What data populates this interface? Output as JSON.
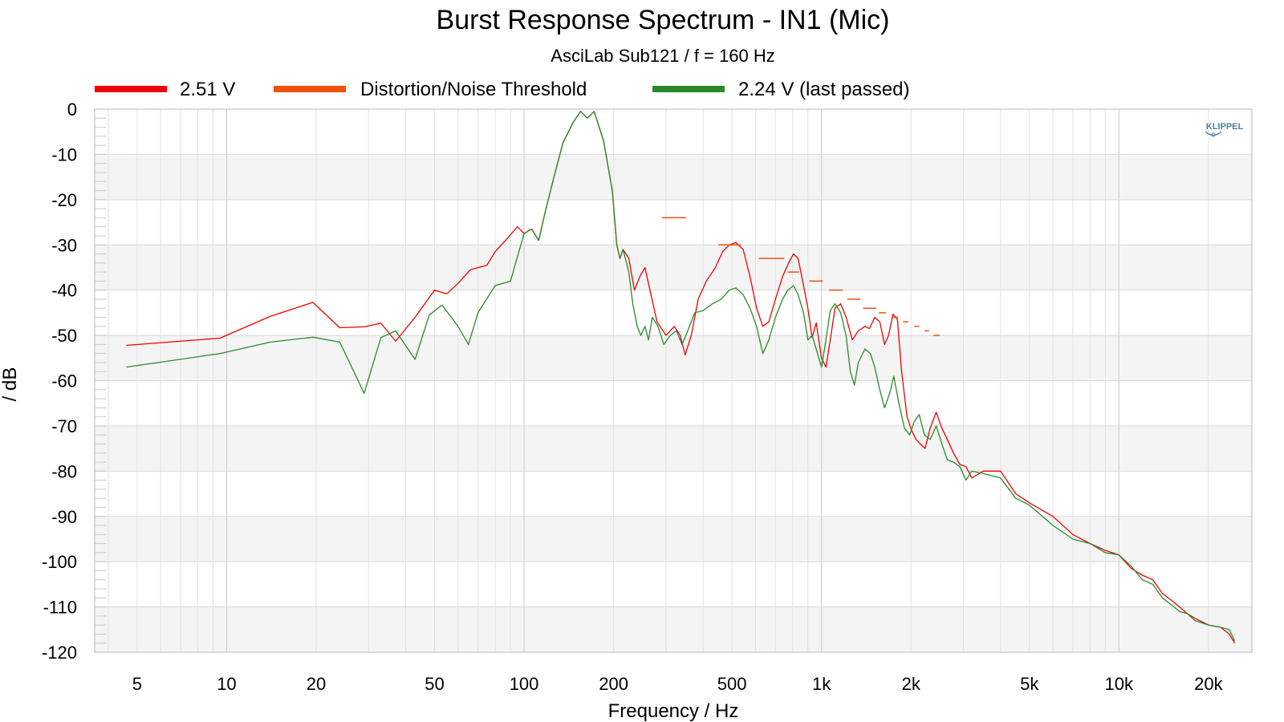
{
  "chart_data": {
    "type": "line",
    "title": "Burst Response Spectrum - IN1 (Mic)",
    "subtitle": "AsciLab Sub121 / f = 160 Hz",
    "xlabel": "Frequency / Hz",
    "ylabel": "/ dB",
    "xscale": "log",
    "xlim": [
      3.6,
      28000
    ],
    "ylim": [
      -120,
      0
    ],
    "grid": true,
    "legend_position": "top",
    "x_ticks": [
      {
        "value": 5,
        "label": "5"
      },
      {
        "value": 10,
        "label": "10"
      },
      {
        "value": 20,
        "label": "20"
      },
      {
        "value": 50,
        "label": "50"
      },
      {
        "value": 100,
        "label": "100"
      },
      {
        "value": 200,
        "label": "200"
      },
      {
        "value": 500,
        "label": "500"
      },
      {
        "value": 1000,
        "label": "1k"
      },
      {
        "value": 2000,
        "label": "2k"
      },
      {
        "value": 5000,
        "label": "5k"
      },
      {
        "value": 10000,
        "label": "10k"
      },
      {
        "value": 20000,
        "label": "20k"
      }
    ],
    "y_ticks": [
      0,
      -10,
      -20,
      -30,
      -40,
      -50,
      -60,
      -70,
      -80,
      -90,
      -100,
      -110,
      -120
    ],
    "series": [
      {
        "name": "2.51 V",
        "color": "#ee0000",
        "style": "line",
        "points": [
          [
            4.6,
            -52.2
          ],
          [
            9.5,
            -50.6
          ],
          [
            14,
            -45.8
          ],
          [
            19.5,
            -42.7
          ],
          [
            24,
            -48.3
          ],
          [
            29,
            -48.1
          ],
          [
            33,
            -47.3
          ],
          [
            37,
            -51.3
          ],
          [
            43,
            -46
          ],
          [
            50,
            -40
          ],
          [
            55,
            -40.8
          ],
          [
            60,
            -38.5
          ],
          [
            66,
            -35.5
          ],
          [
            75,
            -34.5
          ],
          [
            80,
            -31.5
          ],
          [
            88,
            -28.5
          ],
          [
            95,
            -26
          ],
          [
            100,
            -27.5
          ],
          [
            106,
            -26.5
          ],
          [
            112,
            -29
          ],
          [
            118,
            -22.5
          ],
          [
            126,
            -15
          ],
          [
            135,
            -7.5
          ],
          [
            146,
            -3
          ],
          [
            155,
            -0.5
          ],
          [
            163,
            -2
          ],
          [
            172,
            -0.5
          ],
          [
            185,
            -7
          ],
          [
            198,
            -18
          ],
          [
            205,
            -30
          ],
          [
            210,
            -33
          ],
          [
            215,
            -31
          ],
          [
            225,
            -33
          ],
          [
            235,
            -40
          ],
          [
            245,
            -37
          ],
          [
            255,
            -35
          ],
          [
            265,
            -40
          ],
          [
            280,
            -47
          ],
          [
            300,
            -50
          ],
          [
            320,
            -48
          ],
          [
            335,
            -50
          ],
          [
            348,
            -54.3
          ],
          [
            365,
            -50
          ],
          [
            385,
            -42
          ],
          [
            410,
            -38
          ],
          [
            440,
            -35
          ],
          [
            465,
            -31.5
          ],
          [
            490,
            -30
          ],
          [
            515,
            -29.5
          ],
          [
            545,
            -31
          ],
          [
            575,
            -37
          ],
          [
            605,
            -44
          ],
          [
            635,
            -48
          ],
          [
            665,
            -47
          ],
          [
            700,
            -42
          ],
          [
            740,
            -37
          ],
          [
            775,
            -34
          ],
          [
            805,
            -32
          ],
          [
            835,
            -33
          ],
          [
            870,
            -39
          ],
          [
            900,
            -44
          ],
          [
            930,
            -50.5
          ],
          [
            960,
            -47.2
          ],
          [
            1000,
            -55
          ],
          [
            1035,
            -57
          ],
          [
            1070,
            -51
          ],
          [
            1110,
            -44
          ],
          [
            1160,
            -43
          ],
          [
            1210,
            -46
          ],
          [
            1270,
            -51
          ],
          [
            1330,
            -49
          ],
          [
            1400,
            -48
          ],
          [
            1450,
            -48.5
          ],
          [
            1510,
            -46
          ],
          [
            1570,
            -47
          ],
          [
            1630,
            -52
          ],
          [
            1680,
            -50
          ],
          [
            1740,
            -45.3
          ],
          [
            1800,
            -46.5
          ],
          [
            1860,
            -58
          ],
          [
            1940,
            -68
          ],
          [
            2010,
            -71
          ],
          [
            2080,
            -73
          ],
          [
            2150,
            -74
          ],
          [
            2230,
            -75
          ],
          [
            2320,
            -70.5
          ],
          [
            2430,
            -67
          ],
          [
            2540,
            -70.5
          ],
          [
            2650,
            -73
          ],
          [
            2780,
            -76
          ],
          [
            2920,
            -78.5
          ],
          [
            3060,
            -79
          ],
          [
            3200,
            -81.5
          ],
          [
            3500,
            -80
          ],
          [
            4000,
            -80
          ],
          [
            4500,
            -85
          ],
          [
            5000,
            -87
          ],
          [
            6000,
            -90
          ],
          [
            7000,
            -94
          ],
          [
            8000,
            -96
          ],
          [
            9000,
            -97.5
          ],
          [
            10000,
            -98.5
          ],
          [
            11000,
            -101.5
          ],
          [
            12000,
            -103
          ],
          [
            13000,
            -104
          ],
          [
            14000,
            -107
          ],
          [
            15000,
            -108.5
          ],
          [
            16000,
            -110
          ],
          [
            17000,
            -111.5
          ],
          [
            18000,
            -112.5
          ],
          [
            20000,
            -114
          ],
          [
            22000,
            -114.5
          ],
          [
            23500,
            -116
          ],
          [
            24500,
            -118
          ]
        ]
      },
      {
        "name": "Distortion/Noise Threshold",
        "color": "#f0500a",
        "style": "steps",
        "points": [
          [
            290,
            -24
          ],
          [
            350,
            -24
          ],
          [
            450,
            -30
          ],
          [
            535,
            -30
          ],
          [
            615,
            -33
          ],
          [
            750,
            -33
          ],
          [
            770,
            -36
          ],
          [
            840,
            -36
          ],
          [
            910,
            -38
          ],
          [
            1010,
            -38
          ],
          [
            1060,
            -40
          ],
          [
            1180,
            -40
          ],
          [
            1220,
            -42
          ],
          [
            1350,
            -42
          ],
          [
            1380,
            -44
          ],
          [
            1530,
            -44
          ],
          [
            1560,
            -45
          ],
          [
            1650,
            -45
          ],
          [
            1720,
            -46
          ],
          [
            1810,
            -46
          ],
          [
            1880,
            -47
          ],
          [
            1960,
            -47
          ],
          [
            2050,
            -48
          ],
          [
            2130,
            -48
          ],
          [
            2220,
            -49
          ],
          [
            2300,
            -49
          ],
          [
            2380,
            -50
          ],
          [
            2500,
            -50
          ]
        ]
      },
      {
        "name": "2.24 V (last passed)",
        "color": "#2a8a2a",
        "style": "line",
        "points": [
          [
            4.6,
            -57
          ],
          [
            9.5,
            -54
          ],
          [
            14,
            -51.5
          ],
          [
            19.5,
            -50.4
          ],
          [
            24,
            -51.5
          ],
          [
            29,
            -62.8
          ],
          [
            33,
            -50.5
          ],
          [
            37,
            -49
          ],
          [
            43,
            -55.3
          ],
          [
            48,
            -45.5
          ],
          [
            53,
            -43.3
          ],
          [
            60,
            -48
          ],
          [
            65,
            -52
          ],
          [
            70,
            -45
          ],
          [
            80,
            -39
          ],
          [
            90,
            -38
          ],
          [
            100,
            -27.5
          ],
          [
            106,
            -26.5
          ],
          [
            112,
            -29
          ],
          [
            118,
            -22.5
          ],
          [
            126,
            -15
          ],
          [
            135,
            -7.5
          ],
          [
            146,
            -3
          ],
          [
            155,
            -0.5
          ],
          [
            163,
            -2
          ],
          [
            172,
            -0.5
          ],
          [
            185,
            -7
          ],
          [
            198,
            -18
          ],
          [
            205,
            -30
          ],
          [
            210,
            -33
          ],
          [
            215,
            -31
          ],
          [
            225,
            -36
          ],
          [
            232,
            -43
          ],
          [
            240,
            -48
          ],
          [
            247,
            -50
          ],
          [
            255,
            -48
          ],
          [
            262,
            -51
          ],
          [
            270,
            -46
          ],
          [
            282,
            -48
          ],
          [
            295,
            -52
          ],
          [
            310,
            -50
          ],
          [
            325,
            -49
          ],
          [
            340,
            -52
          ],
          [
            355,
            -49
          ],
          [
            375,
            -45
          ],
          [
            400,
            -44.5
          ],
          [
            430,
            -43
          ],
          [
            460,
            -42
          ],
          [
            490,
            -40
          ],
          [
            515,
            -39.5
          ],
          [
            545,
            -41
          ],
          [
            575,
            -44
          ],
          [
            605,
            -48
          ],
          [
            635,
            -54
          ],
          [
            665,
            -51
          ],
          [
            700,
            -46
          ],
          [
            740,
            -42
          ],
          [
            770,
            -40
          ],
          [
            805,
            -39
          ],
          [
            835,
            -41
          ],
          [
            870,
            -45
          ],
          [
            900,
            -51
          ],
          [
            930,
            -50
          ],
          [
            960,
            -53
          ],
          [
            1000,
            -57
          ],
          [
            1035,
            -51
          ],
          [
            1070,
            -44.5
          ],
          [
            1110,
            -43
          ],
          [
            1160,
            -45
          ],
          [
            1210,
            -50
          ],
          [
            1250,
            -58
          ],
          [
            1290,
            -61
          ],
          [
            1330,
            -56
          ],
          [
            1400,
            -53
          ],
          [
            1460,
            -54
          ],
          [
            1510,
            -57
          ],
          [
            1570,
            -62
          ],
          [
            1630,
            -66
          ],
          [
            1700,
            -62.5
          ],
          [
            1750,
            -59
          ],
          [
            1820,
            -65
          ],
          [
            1900,
            -70.5
          ],
          [
            1980,
            -72
          ],
          [
            2050,
            -69
          ],
          [
            2130,
            -67.5
          ],
          [
            2220,
            -72
          ],
          [
            2320,
            -73
          ],
          [
            2430,
            -70
          ],
          [
            2540,
            -74
          ],
          [
            2650,
            -77.5
          ],
          [
            2780,
            -78
          ],
          [
            2920,
            -79
          ],
          [
            3060,
            -82
          ],
          [
            3200,
            -80
          ],
          [
            3500,
            -80.5
          ],
          [
            4000,
            -81.5
          ],
          [
            4500,
            -86
          ],
          [
            5000,
            -87.5
          ],
          [
            6000,
            -92
          ],
          [
            7000,
            -95
          ],
          [
            8000,
            -96
          ],
          [
            9000,
            -98
          ],
          [
            10000,
            -98.5
          ],
          [
            11000,
            -101
          ],
          [
            12000,
            -104
          ],
          [
            13000,
            -105
          ],
          [
            14000,
            -108
          ],
          [
            15000,
            -109.5
          ],
          [
            16000,
            -111
          ],
          [
            17000,
            -111.5
          ],
          [
            18000,
            -113
          ],
          [
            20000,
            -114
          ],
          [
            22000,
            -114.5
          ],
          [
            23500,
            -115
          ],
          [
            24500,
            -117.5
          ]
        ]
      }
    ]
  },
  "logo": {
    "text": "KLIPPEL"
  }
}
